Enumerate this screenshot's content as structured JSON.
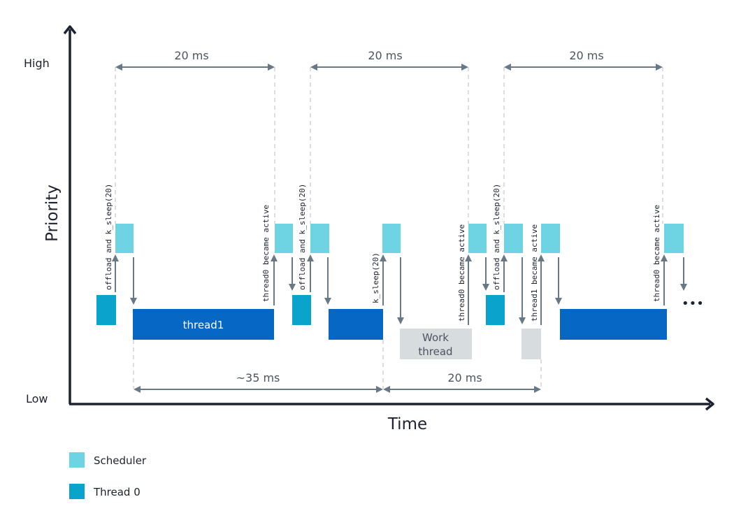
{
  "axes": {
    "y_label": "Priority",
    "x_label": "Time",
    "high_label": "High",
    "low_label": "Low"
  },
  "durations": {
    "top_1": "20 ms",
    "top_2": "20 ms",
    "top_3": "20 ms",
    "bottom_1": "~35 ms",
    "bottom_2": "20 ms"
  },
  "annotations": {
    "a1": "offload and k_sleep(20)",
    "a2": "thread0 became active",
    "a3": "offload and k_sleep(20)",
    "a4": "k_sleep(20)",
    "a5": "thread0 became active",
    "a6": "offload and k_sleep(20)",
    "a7": "thread1 became active",
    "a8": "thread0 became active"
  },
  "blocks": {
    "thread1_label": "thread1",
    "work_thread_line1": "Work",
    "work_thread_line2": "thread"
  },
  "ellipsis": "•••",
  "legend": [
    {
      "label": "Scheduler",
      "color": "#6ed3e3"
    },
    {
      "label": "Thread 0",
      "color": "#0aa3cc"
    }
  ],
  "colors": {
    "scheduler": "#6ed3e3",
    "thread0": "#0aa3cc",
    "thread1": "#0668c4",
    "work_thread": "#d7dcdf",
    "arrow": "#697885",
    "axis": "#1c2230"
  }
}
